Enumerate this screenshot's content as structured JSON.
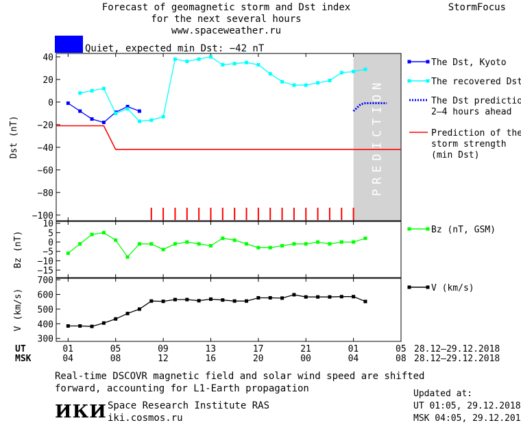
{
  "header": {
    "title_line1": "Forecast of geomagnetic storm and Dst index",
    "title_line2": "for the next several hours",
    "url": "www.spaceweather.ru",
    "brand": "StormFocus"
  },
  "status": {
    "label": "Quiet, expected min Dst: −42 nT",
    "color": "#0000ff"
  },
  "chart_data": [
    {
      "type": "line",
      "ylabel": "Dst (nT)",
      "ylim": [
        -105,
        43
      ],
      "yticks": [
        "40",
        "20",
        "0",
        "−20",
        "−40",
        "−60",
        "−80",
        "−100"
      ],
      "prediction_label": "PREDICTION",
      "series": [
        {
          "name": "The Dst, Kyoto",
          "color": "#0000ff",
          "x": [
            1,
            2,
            3,
            4,
            5,
            6,
            7
          ],
          "y": [
            -1,
            -8,
            -15,
            -18,
            -9,
            -4,
            -8
          ]
        },
        {
          "name": "The recovered Dst",
          "color": "#00ffff",
          "x": [
            2,
            3,
            4,
            5,
            6,
            7,
            8,
            9,
            10,
            11,
            12,
            13,
            14,
            15,
            16,
            17,
            18,
            19,
            20,
            21,
            22,
            23,
            24,
            25,
            26
          ],
          "y": [
            8,
            10,
            12,
            -10,
            -6,
            -17,
            -16,
            -13,
            38,
            36,
            38,
            40,
            33,
            34,
            35,
            33,
            25,
            18,
            15,
            15,
            17,
            19,
            26,
            27,
            29
          ]
        },
        {
          "name": "The Dst prediction 2–4 hours ahead",
          "color": "#0000ff",
          "x": [
            25.0,
            25.3,
            25.6,
            26.0,
            26.5,
            27.2,
            27.8
          ],
          "y": [
            -8,
            -5,
            -2,
            -1,
            -1,
            -1,
            -1
          ]
        },
        {
          "name": "Prediction of the storm strength (min Dst)",
          "color": "#ff0000",
          "x": [
            0,
            4,
            5,
            29
          ],
          "y": [
            -21,
            -21,
            -42,
            -42
          ]
        }
      ],
      "storm_ticks_x": [
        8,
        9,
        10,
        11,
        12,
        13,
        14,
        15,
        16,
        17,
        18,
        19,
        20,
        21,
        22,
        23,
        24,
        25
      ],
      "legend": [
        {
          "label": "The Dst, Kyoto",
          "color": "#0000ff",
          "style": "solid-square"
        },
        {
          "label": "The recovered Dst",
          "color": "#00ffff",
          "style": "solid-square"
        },
        {
          "label": "The Dst prediction\n2–4 hours ahead",
          "color": "#0000ff",
          "style": "dotted"
        },
        {
          "label": "Prediction of the\nstorm strength\n(min Dst)",
          "color": "#ff0000",
          "style": "solid"
        }
      ]
    },
    {
      "type": "line",
      "ylabel": "Bz (nT)",
      "ylim": [
        -19,
        11
      ],
      "yticks": [
        "10",
        "5",
        "0",
        "−5",
        "−10",
        "−15"
      ],
      "series": [
        {
          "name": "Bz (nT, GSM)",
          "color": "#00ff00",
          "x": [
            1,
            2,
            3,
            4,
            5,
            6,
            7,
            8,
            9,
            10,
            11,
            12,
            13,
            14,
            15,
            16,
            17,
            18,
            19,
            20,
            21,
            22,
            23,
            24,
            25,
            26
          ],
          "y": [
            -6,
            -1,
            4,
            5,
            1,
            -8,
            -1,
            -1,
            -4,
            -1,
            0,
            -1,
            -2,
            2,
            1,
            -1,
            -3,
            -3,
            -2,
            -1,
            -1,
            0,
            -1,
            0,
            0,
            2
          ]
        }
      ],
      "legend": [
        {
          "label": "Bz (nT, GSM)",
          "color": "#00ff00",
          "style": "solid-square"
        }
      ]
    },
    {
      "type": "line",
      "ylabel": "V (km/s)",
      "ylim": [
        280,
        710
      ],
      "yticks": [
        "700",
        "600",
        "500",
        "400",
        "300"
      ],
      "series": [
        {
          "name": "V (km/s)",
          "color": "#000000",
          "x": [
            1,
            2,
            3,
            4,
            5,
            6,
            7,
            8,
            9,
            10,
            11,
            12,
            13,
            14,
            15,
            16,
            17,
            18,
            19,
            20,
            21,
            22,
            23,
            24,
            25,
            26
          ],
          "y": [
            385,
            385,
            382,
            405,
            433,
            470,
            500,
            555,
            553,
            565,
            565,
            557,
            568,
            562,
            555,
            555,
            577,
            577,
            575,
            598,
            583,
            583,
            583,
            585,
            585,
            552
          ]
        }
      ],
      "legend": [
        {
          "label": "V (km/s)",
          "color": "#000000",
          "style": "solid-square"
        }
      ]
    }
  ],
  "time_axis": {
    "ut_label": "UT",
    "msk_label": "MSK",
    "ticks_ut": [
      "01",
      "05",
      "09",
      "13",
      "17",
      "21",
      "01",
      "05"
    ],
    "ticks_msk": [
      "04",
      "08",
      "12",
      "16",
      "20",
      "00",
      "04",
      "08"
    ],
    "ut_range": "28.12–29.12.2018",
    "msk_range": "28.12–29.12.2018"
  },
  "footer": {
    "note": "Real-time DSCOVR magnetic field and solar wind speed are shifted\nforward, accounting for L1-Earth propagation",
    "org_logo": "ИКИ",
    "org_name": "Space Research Institute RAS",
    "org_url": "iki.cosmos.ru",
    "updated_label": "Updated at:",
    "updated_ut": "UT   01:05, 29.12.2018",
    "updated_msk": "MSK 04:05, 29.12.2018"
  }
}
